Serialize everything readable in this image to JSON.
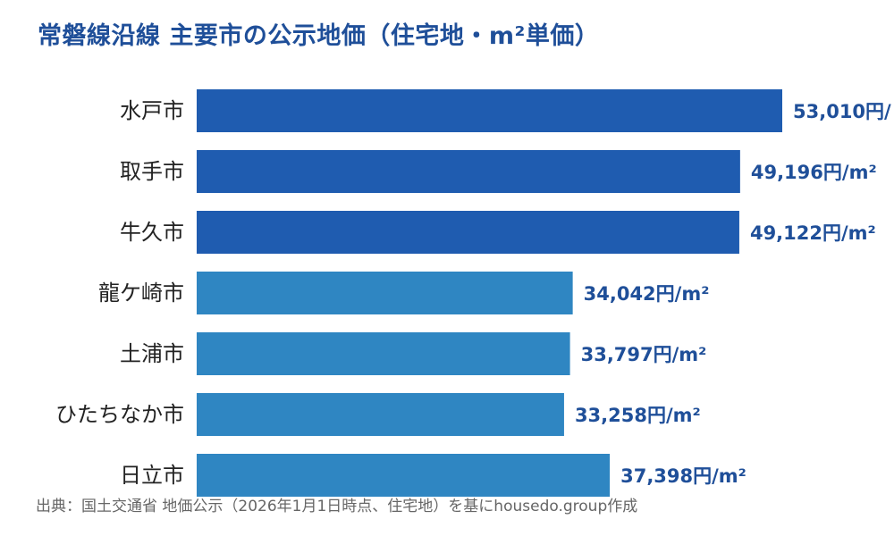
{
  "title": "常磐線沿線 主要市の公示地価（住宅地・m²単価）",
  "source_note": "出典：国土交通省 地価公示（2026年1月1日時点、住宅地）を基にhousedo.group作成",
  "colors": {
    "highlight": "#1f5cb0",
    "normal": "#2f86c2",
    "title": "#1f4f99",
    "value_label": "#1f4f99"
  },
  "chart_data": {
    "type": "bar",
    "orientation": "horizontal",
    "categories": [
      "水戸市",
      "取手市",
      "牛久市",
      "龍ケ崎市",
      "土浦市",
      "ひたちなか市",
      "日立市"
    ],
    "values": [
      53010,
      49196,
      49122,
      34042,
      33797,
      33258,
      37398
    ],
    "value_labels": [
      "53,010円/",
      "49,196円/m²",
      "49,122円/m²",
      "34,042円/m²",
      "33,797円/m²",
      "33,258円/m²",
      "37,398円/m²"
    ],
    "highlighted": [
      true,
      true,
      true,
      false,
      false,
      false,
      false
    ],
    "xlim": [
      0,
      53010
    ],
    "grid": false,
    "legend": "none"
  }
}
